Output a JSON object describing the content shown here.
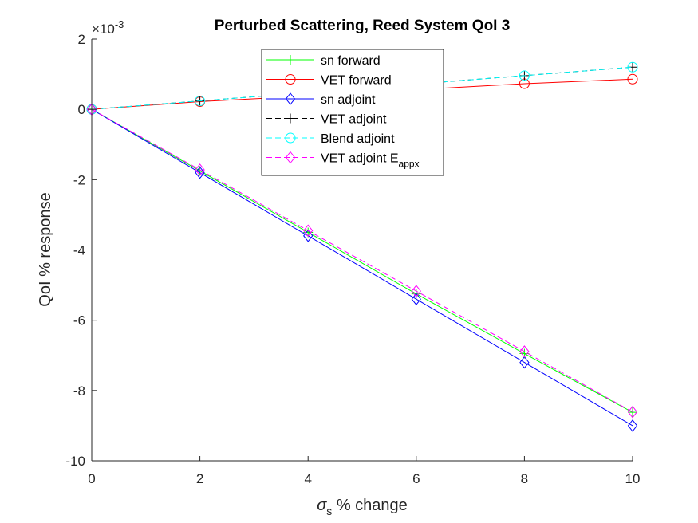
{
  "chart_data": {
    "type": "line",
    "title": "Perturbed Scattering, Reed System QoI 3",
    "xlabel": {
      "main": "σ",
      "sub": "s",
      "rest": " % change"
    },
    "ylabel": "QoI % response",
    "exponent": {
      "base": "×10",
      "power": "-3"
    },
    "xlim": [
      0,
      10
    ],
    "ylim": [
      -10,
      2
    ],
    "xticks": [
      0,
      2,
      4,
      6,
      8,
      10
    ],
    "yticks": [
      -10,
      -8,
      -6,
      -4,
      -2,
      0,
      2
    ],
    "x": [
      0,
      2,
      4,
      6,
      8,
      10
    ],
    "legend_position": "top-center",
    "grid": false,
    "series": [
      {
        "name": "sn forward",
        "color": "#00ff00",
        "dash": "solid",
        "marker": "plus",
        "values": [
          0,
          -1.75,
          -3.5,
          -5.25,
          -6.95,
          -8.62
        ]
      },
      {
        "name": "VET forward",
        "color": "#ff0000",
        "dash": "solid",
        "marker": "circle",
        "values": [
          0,
          0.22,
          0.38,
          0.56,
          0.73,
          0.86
        ]
      },
      {
        "name": "sn adjoint",
        "color": "#0000ff",
        "dash": "solid",
        "marker": "diamond",
        "values": [
          0,
          -1.8,
          -3.6,
          -5.4,
          -7.2,
          -9.0
        ]
      },
      {
        "name": "VET adjoint",
        "color": "#000000",
        "dash": "dashed",
        "marker": "plus",
        "values": [
          0,
          0.24,
          0.48,
          0.72,
          0.96,
          1.2
        ]
      },
      {
        "name": "Blend adjoint",
        "color": "#00ffff",
        "dash": "dashed",
        "marker": "circle",
        "values": [
          0,
          0.24,
          0.48,
          0.72,
          0.96,
          1.2
        ]
      },
      {
        "name": "VET adjoint E",
        "name_sub": "appx",
        "color": "#ff00ff",
        "dash": "dashed",
        "marker": "diamond",
        "values": [
          0,
          -1.72,
          -3.45,
          -5.17,
          -6.89,
          -8.61
        ]
      }
    ]
  }
}
